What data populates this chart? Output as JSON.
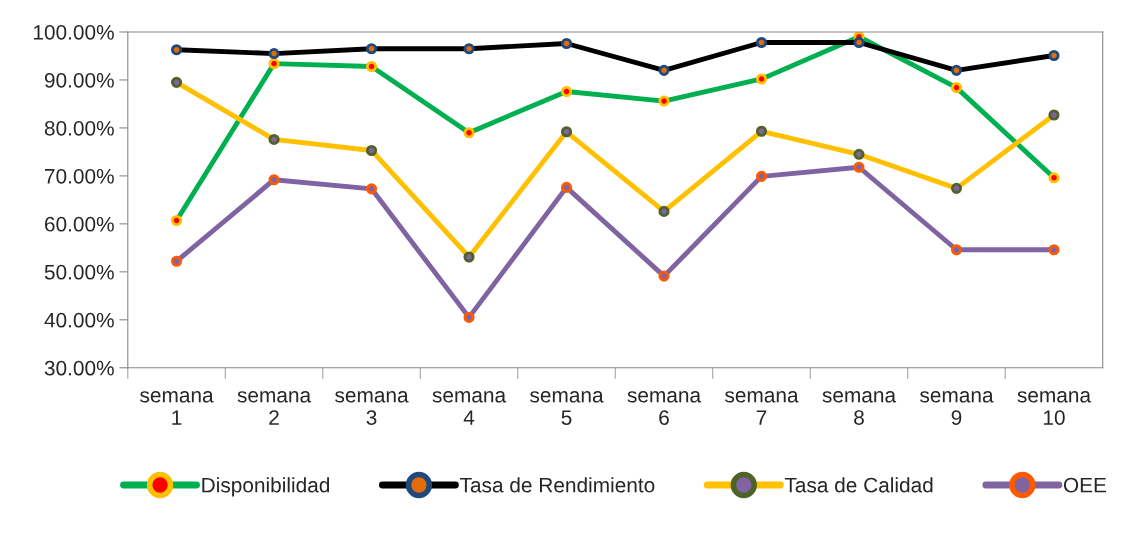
{
  "chart_data": {
    "type": "line",
    "categories": [
      "semana\n1",
      "semana\n2",
      "semana\n3",
      "semana\n4",
      "semana\n5",
      "semana\n6",
      "semana\n7",
      "semana\n8",
      "semana\n9",
      "semana\n10"
    ],
    "series": [
      {
        "name": "Disponibilidad",
        "color": "#00b050",
        "values": [
          60.7,
          93.4,
          92.8,
          79.0,
          87.6,
          85.6,
          90.2,
          99.0,
          88.4,
          69.6
        ]
      },
      {
        "name": "Tasa de Rendimiento",
        "color": "#000000",
        "values": [
          96.3,
          95.5,
          96.5,
          96.5,
          97.6,
          92.0,
          97.8,
          97.8,
          92.0,
          95.1
        ]
      },
      {
        "name": "Tasa de Calidad",
        "color": "#ffc000",
        "values": [
          89.5,
          77.6,
          75.3,
          53.1,
          79.2,
          62.6,
          79.3,
          74.5,
          67.4,
          82.7
        ]
      },
      {
        "name": "OEE",
        "color": "#8064a2",
        "values": [
          52.2,
          69.2,
          67.3,
          40.5,
          67.6,
          49.1,
          69.9,
          71.8,
          54.6,
          54.6
        ]
      }
    ],
    "ylim": [
      30,
      100
    ],
    "yticks": [
      {
        "value": 30,
        "label": "30.00%"
      },
      {
        "value": 40,
        "label": "40.00%"
      },
      {
        "value": 50,
        "label": "50.00%"
      },
      {
        "value": 60,
        "label": "60.00%"
      },
      {
        "value": 70,
        "label": "70.00%"
      },
      {
        "value": 80,
        "label": "80.00%"
      },
      {
        "value": 90,
        "label": "90.00%"
      },
      {
        "value": 100,
        "label": "100.00%"
      }
    ],
    "marker": "circle",
    "line_style": "solid",
    "legend": "bottom",
    "grid": false
  }
}
